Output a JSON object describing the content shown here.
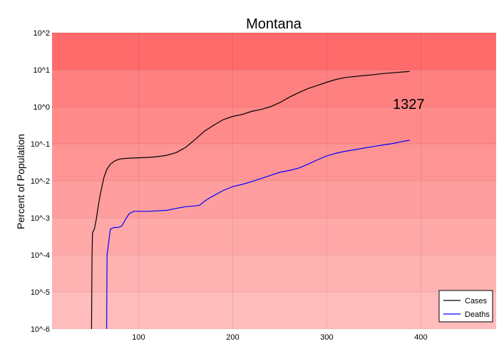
{
  "chart_data": {
    "type": "line",
    "title": "Montana",
    "xlabel": "",
    "ylabel": "Percent of Population",
    "y_scale": "log",
    "xlim": [
      8,
      480
    ],
    "ylim": [
      1e-06,
      100
    ],
    "x_ticks": [
      100,
      200,
      300,
      400
    ],
    "y_ticks": [
      {
        "value": 100,
        "label": "10^2"
      },
      {
        "value": 10,
        "label": "10^1"
      },
      {
        "value": 1,
        "label": "10^0"
      },
      {
        "value": 0.1,
        "label": "10^-1"
      },
      {
        "value": 0.01,
        "label": "10^-2"
      },
      {
        "value": 0.001,
        "label": "10^-3"
      },
      {
        "value": 0.0001,
        "label": "10^-4"
      },
      {
        "value": 1e-05,
        "label": "10^-5"
      },
      {
        "value": 1e-06,
        "label": "10^-6"
      }
    ],
    "band_colors": [
      "#ff6a6a",
      "#ff8080",
      "#ff8a8a",
      "#ff9494",
      "#ff9e9e",
      "#ffa8a8",
      "#ffb2b2",
      "#ffbcbc"
    ],
    "grid": true,
    "legend_position": "bottom-right",
    "annotations": [
      {
        "text": "1327",
        "x": 387,
        "y": 1.2
      }
    ],
    "series": [
      {
        "name": "Cases",
        "color": "#000000",
        "points": [
          [
            50,
            1e-06
          ],
          [
            50.5,
            0.0001
          ],
          [
            51,
            0.0004
          ],
          [
            53,
            0.0005
          ],
          [
            55,
            0.0009
          ],
          [
            57,
            0.002
          ],
          [
            59,
            0.004
          ],
          [
            61,
            0.007
          ],
          [
            63,
            0.012
          ],
          [
            66,
            0.02
          ],
          [
            70,
            0.028
          ],
          [
            75,
            0.035
          ],
          [
            80,
            0.039
          ],
          [
            90,
            0.041
          ],
          [
            100,
            0.042
          ],
          [
            110,
            0.043
          ],
          [
            120,
            0.045
          ],
          [
            130,
            0.049
          ],
          [
            140,
            0.058
          ],
          [
            150,
            0.08
          ],
          [
            160,
            0.13
          ],
          [
            170,
            0.22
          ],
          [
            180,
            0.32
          ],
          [
            190,
            0.45
          ],
          [
            200,
            0.55
          ],
          [
            210,
            0.62
          ],
          [
            220,
            0.75
          ],
          [
            230,
            0.85
          ],
          [
            240,
            1.0
          ],
          [
            250,
            1.3
          ],
          [
            260,
            1.8
          ],
          [
            270,
            2.4
          ],
          [
            280,
            3.1
          ],
          [
            290,
            3.8
          ],
          [
            300,
            4.6
          ],
          [
            310,
            5.5
          ],
          [
            320,
            6.2
          ],
          [
            330,
            6.6
          ],
          [
            340,
            7.0
          ],
          [
            350,
            7.4
          ],
          [
            360,
            7.9
          ],
          [
            370,
            8.3
          ],
          [
            380,
            8.7
          ],
          [
            388,
            9.0
          ]
        ]
      },
      {
        "name": "Deaths",
        "color": "#0000ff",
        "points": [
          [
            66,
            1e-06
          ],
          [
            66.5,
            0.0001
          ],
          [
            68,
            0.0002
          ],
          [
            70,
            0.0005
          ],
          [
            74,
            0.00055
          ],
          [
            78,
            0.00055
          ],
          [
            82,
            0.0006
          ],
          [
            86,
            0.0009
          ],
          [
            90,
            0.0013
          ],
          [
            95,
            0.0015
          ],
          [
            110,
            0.0015
          ],
          [
            130,
            0.0016
          ],
          [
            140,
            0.0018
          ],
          [
            150,
            0.002
          ],
          [
            160,
            0.0021
          ],
          [
            165,
            0.0022
          ],
          [
            170,
            0.0028
          ],
          [
            175,
            0.0034
          ],
          [
            180,
            0.004
          ],
          [
            190,
            0.0055
          ],
          [
            200,
            0.007
          ],
          [
            210,
            0.008
          ],
          [
            220,
            0.0095
          ],
          [
            230,
            0.0115
          ],
          [
            240,
            0.014
          ],
          [
            250,
            0.017
          ],
          [
            260,
            0.019
          ],
          [
            270,
            0.022
          ],
          [
            280,
            0.028
          ],
          [
            290,
            0.037
          ],
          [
            300,
            0.047
          ],
          [
            310,
            0.056
          ],
          [
            320,
            0.063
          ],
          [
            330,
            0.07
          ],
          [
            340,
            0.077
          ],
          [
            350,
            0.085
          ],
          [
            360,
            0.093
          ],
          [
            370,
            0.102
          ],
          [
            380,
            0.115
          ],
          [
            388,
            0.125
          ]
        ]
      }
    ]
  }
}
